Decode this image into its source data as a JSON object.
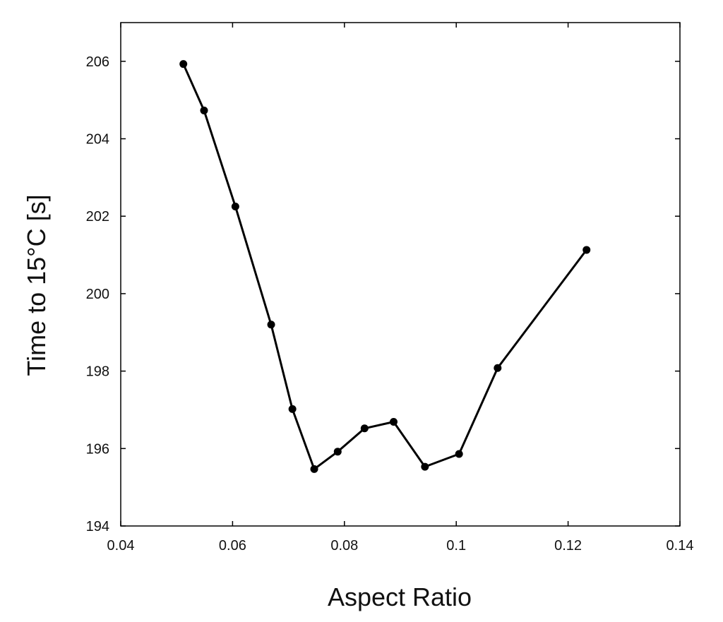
{
  "chart_data": {
    "type": "line",
    "title": "",
    "xlabel": "Aspect Ratio",
    "ylabel": "Time to 15°C [s]",
    "xlim": [
      0.04,
      0.14
    ],
    "ylim": [
      194,
      207
    ],
    "xticks": [
      0.04,
      0.06,
      0.08,
      0.1,
      0.12,
      0.14
    ],
    "xtick_labels": [
      "0.04",
      "0.06",
      "0.08",
      "0.1",
      "0.12",
      "0.14"
    ],
    "yticks": [
      194,
      196,
      198,
      200,
      202,
      204,
      206
    ],
    "ytick_labels": [
      "194",
      "196",
      "198",
      "200",
      "202",
      "204",
      "206"
    ],
    "grid": false,
    "legend": "none",
    "series": [
      {
        "x": [
          0.0512,
          0.0549,
          0.0605,
          0.0669,
          0.0707,
          0.0746,
          0.0788,
          0.0836,
          0.0888,
          0.0944,
          0.1005,
          0.1074,
          0.1233
        ],
        "y": [
          205.93,
          204.73,
          202.25,
          199.2,
          197.02,
          195.47,
          195.92,
          196.52,
          196.69,
          195.53,
          195.86,
          198.08,
          201.13
        ],
        "color": "#000000",
        "marker": "circle"
      }
    ]
  }
}
